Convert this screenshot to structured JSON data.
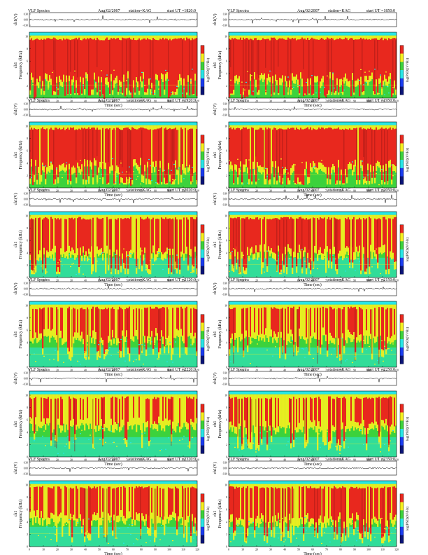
{
  "header": {
    "title": "VLF Spectra",
    "date": "Aug/02/2007",
    "station": "station=KAG",
    "start_prefix": "start  UT ="
  },
  "labels": {
    "waveform_ylabel": "ch1(V)",
    "freq_ylabel_ch": "ch1",
    "freq_ylabel": "Frequency (kHz)",
    "xlabel": "Time (sec)",
    "colorbar_label": "log(PSD)(V²/Hz)"
  },
  "axes": {
    "time_ticks": [
      "0",
      "10",
      "20",
      "30",
      "40",
      "50",
      "60",
      "70",
      "80",
      "90",
      "100",
      "110",
      "120"
    ],
    "freq_ticks": [
      "0",
      "2",
      "4",
      "6",
      "8",
      "10"
    ],
    "volt_ticks": [
      "0.30",
      "0.00",
      "-0.30"
    ]
  },
  "colors": {
    "red": "#e8281e",
    "yellow": "#f5f01e",
    "green": "#3cd23c",
    "cyan": "#28e6e6",
    "blue": "#1a3cf0",
    "dark_blue": "#0a1478",
    "dark_red": "#8c1414"
  },
  "chart_data": [
    {
      "type": "heatmap",
      "start_ut": "1820:0",
      "xlabel": "Time (sec)",
      "ylabel": "Frequency (kHz)",
      "xlim": [
        0,
        120
      ],
      "ylim": [
        0,
        10
      ],
      "activity": 0.9
    },
    {
      "type": "heatmap",
      "start_ut": "1850:0",
      "xlabel": "Time (sec)",
      "ylabel": "Frequency (kHz)",
      "xlim": [
        0,
        120
      ],
      "ylim": [
        0,
        10
      ],
      "activity": 0.9
    },
    {
      "type": "heatmap",
      "start_ut": "1920:0",
      "xlabel": "Time (sec)",
      "ylabel": "Frequency (kHz)",
      "xlim": [
        0,
        120
      ],
      "ylim": [
        0,
        10
      ],
      "activity": 0.8
    },
    {
      "type": "heatmap",
      "start_ut": "1950:0",
      "xlabel": "Time (sec)",
      "ylabel": "Frequency (kHz)",
      "xlim": [
        0,
        120
      ],
      "ylim": [
        0,
        10
      ],
      "activity": 0.82
    },
    {
      "type": "heatmap",
      "start_ut": "2020:0",
      "xlabel": "Time (sec)",
      "ylabel": "Frequency (kHz)",
      "xlim": [
        0,
        120
      ],
      "ylim": [
        0,
        10
      ],
      "activity": 0.7
    },
    {
      "type": "heatmap",
      "start_ut": "2050:0",
      "xlabel": "Time (sec)",
      "ylabel": "Frequency (kHz)",
      "xlim": [
        0,
        120
      ],
      "ylim": [
        0,
        10
      ],
      "activity": 0.68
    },
    {
      "type": "heatmap",
      "start_ut": "2120:0",
      "xlabel": "Time (sec)",
      "ylabel": "Frequency (kHz)",
      "xlim": [
        0,
        120
      ],
      "ylim": [
        0,
        10
      ],
      "activity": 0.5
    },
    {
      "type": "heatmap",
      "start_ut": "2150:0",
      "xlabel": "Time (sec)",
      "ylabel": "Frequency (kHz)",
      "xlim": [
        0,
        120
      ],
      "ylim": [
        0,
        10
      ],
      "activity": 0.48
    },
    {
      "type": "heatmap",
      "start_ut": "2220:0",
      "xlabel": "Time (sec)",
      "ylabel": "Frequency (kHz)",
      "xlim": [
        0,
        120
      ],
      "ylim": [
        0,
        10
      ],
      "activity": 0.42
    },
    {
      "type": "heatmap",
      "start_ut": "2250:0",
      "xlabel": "Time (sec)",
      "ylabel": "Frequency (kHz)",
      "xlim": [
        0,
        120
      ],
      "ylim": [
        0,
        10
      ],
      "activity": 0.5
    },
    {
      "type": "heatmap",
      "start_ut": "2320:0",
      "xlabel": "Time (sec)",
      "ylabel": "Frequency (kHz)",
      "xlim": [
        0,
        120
      ],
      "ylim": [
        0,
        10
      ],
      "activity": 0.55
    },
    {
      "type": "heatmap",
      "start_ut": "2350:0",
      "xlabel": "Time (sec)",
      "ylabel": "Frequency (kHz)",
      "xlim": [
        0,
        120
      ],
      "ylim": [
        0,
        10
      ],
      "activity": 0.62
    }
  ]
}
